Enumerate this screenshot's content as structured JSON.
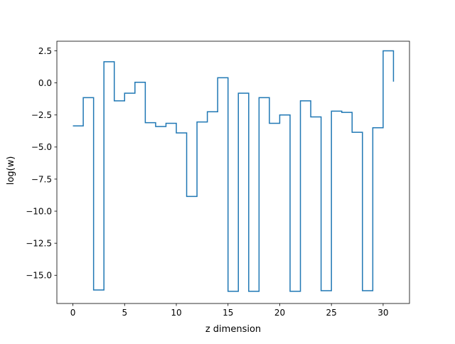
{
  "chart_data": {
    "type": "line",
    "drawstyle": "steps-post",
    "title": "",
    "xlabel": "z dimension",
    "ylabel": "log(w)",
    "xlim": [
      -1.55,
      32.55
    ],
    "ylim": [
      -17.2,
      3.25
    ],
    "xticks": [
      0,
      5,
      10,
      15,
      20,
      25,
      30
    ],
    "xtick_labels": [
      "0",
      "5",
      "10",
      "15",
      "20",
      "25",
      "30"
    ],
    "yticks": [
      2.5,
      0.0,
      -2.5,
      -5.0,
      -7.5,
      -10.0,
      -12.5,
      -15.0
    ],
    "ytick_labels": [
      "2.5",
      "0.0",
      "−2.5",
      "−5.0",
      "−7.5",
      "−10.0",
      "−12.5",
      "−15.0"
    ],
    "grid": false,
    "series": [
      {
        "color": "#1f77b4",
        "x": [
          0,
          1,
          2,
          3,
          4,
          5,
          6,
          7,
          8,
          9,
          10,
          11,
          12,
          13,
          14,
          15,
          16,
          17,
          18,
          19,
          20,
          21,
          22,
          23,
          24,
          25,
          26,
          27,
          28,
          29,
          30,
          31
        ],
        "values": [
          -3.35,
          -1.15,
          -16.15,
          1.65,
          -1.4,
          -0.8,
          0.05,
          -3.1,
          -3.4,
          -3.15,
          -3.9,
          -8.85,
          -3.05,
          -2.25,
          0.4,
          -16.25,
          -0.8,
          -16.25,
          -1.15,
          -3.15,
          -2.5,
          -16.25,
          -1.4,
          -2.65,
          -16.2,
          -2.2,
          -2.3,
          -3.85,
          -16.2,
          -3.5,
          2.5,
          0.1
        ]
      }
    ]
  }
}
